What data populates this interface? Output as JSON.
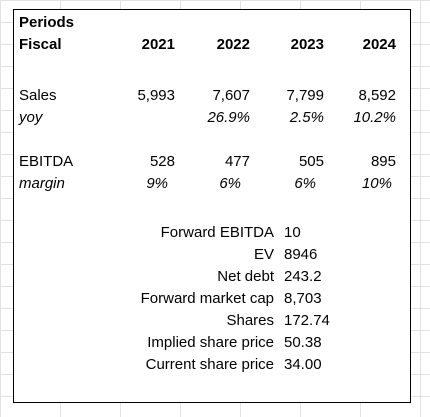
{
  "header": {
    "periods_label": "Periods",
    "fiscal_label": "Fiscal",
    "years": [
      "2021",
      "2022",
      "2023",
      "2024"
    ]
  },
  "rows": {
    "sales": {
      "label": "Sales",
      "values": [
        "5,993",
        "7,607",
        "7,799",
        "8,592"
      ]
    },
    "yoy": {
      "label": "yoy",
      "values": [
        "",
        "26.9%",
        "2.5%",
        "10.2%"
      ]
    },
    "ebitda": {
      "label": "EBITDA",
      "values": [
        "528",
        "477",
        "505",
        "895"
      ]
    },
    "margin": {
      "label": "margin",
      "values": [
        "9%",
        "6%",
        "6%",
        "10%"
      ]
    }
  },
  "valuation": [
    {
      "label": "Forward EBITDA",
      "value": "10"
    },
    {
      "label": "EV",
      "value": "8946"
    },
    {
      "label": "Net debt",
      "value": "243.2"
    },
    {
      "label": "Forward market cap",
      "value": "8,703"
    },
    {
      "label": "Shares",
      "value": "172.74"
    },
    {
      "label": "Implied share price",
      "value": "50.38"
    },
    {
      "label": "Current share price",
      "value": "34.00"
    }
  ]
}
